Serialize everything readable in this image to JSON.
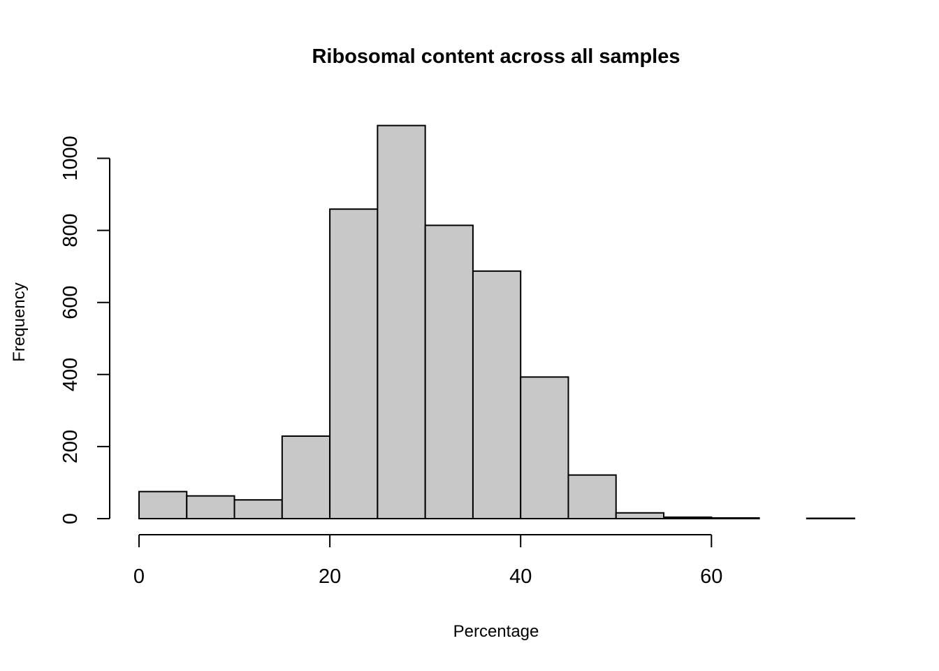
{
  "chart_data": {
    "type": "bar",
    "title": "Ribosomal content across all samples",
    "xlabel": "Percentage",
    "ylabel": "Frequency",
    "bins": [
      {
        "x0": 0,
        "x1": 5,
        "count": 75
      },
      {
        "x0": 5,
        "x1": 10,
        "count": 63
      },
      {
        "x0": 10,
        "x1": 15,
        "count": 52
      },
      {
        "x0": 15,
        "x1": 20,
        "count": 229
      },
      {
        "x0": 20,
        "x1": 25,
        "count": 859
      },
      {
        "x0": 25,
        "x1": 30,
        "count": 1091
      },
      {
        "x0": 30,
        "x1": 35,
        "count": 814
      },
      {
        "x0": 35,
        "x1": 40,
        "count": 687
      },
      {
        "x0": 40,
        "x1": 45,
        "count": 393
      },
      {
        "x0": 45,
        "x1": 50,
        "count": 121
      },
      {
        "x0": 50,
        "x1": 55,
        "count": 16
      },
      {
        "x0": 55,
        "x1": 60,
        "count": 4
      },
      {
        "x0": 60,
        "x1": 65,
        "count": 2
      },
      {
        "x0": 65,
        "x1": 70,
        "count": 0
      },
      {
        "x0": 70,
        "x1": 75,
        "count": 1
      }
    ],
    "xticks": [
      0,
      20,
      40,
      60
    ],
    "xtick_labels": [
      "0",
      "20",
      "40",
      "60"
    ],
    "yticks": [
      0,
      200,
      400,
      600,
      800,
      1000
    ],
    "ytick_labels": [
      "0",
      "200",
      "400",
      "600",
      "800",
      "1000"
    ],
    "xlim": [
      0,
      75
    ],
    "ylim": [
      0,
      1091
    ],
    "bar_color": "#c8c8c8",
    "edge_color": "#000000",
    "grid": false
  }
}
